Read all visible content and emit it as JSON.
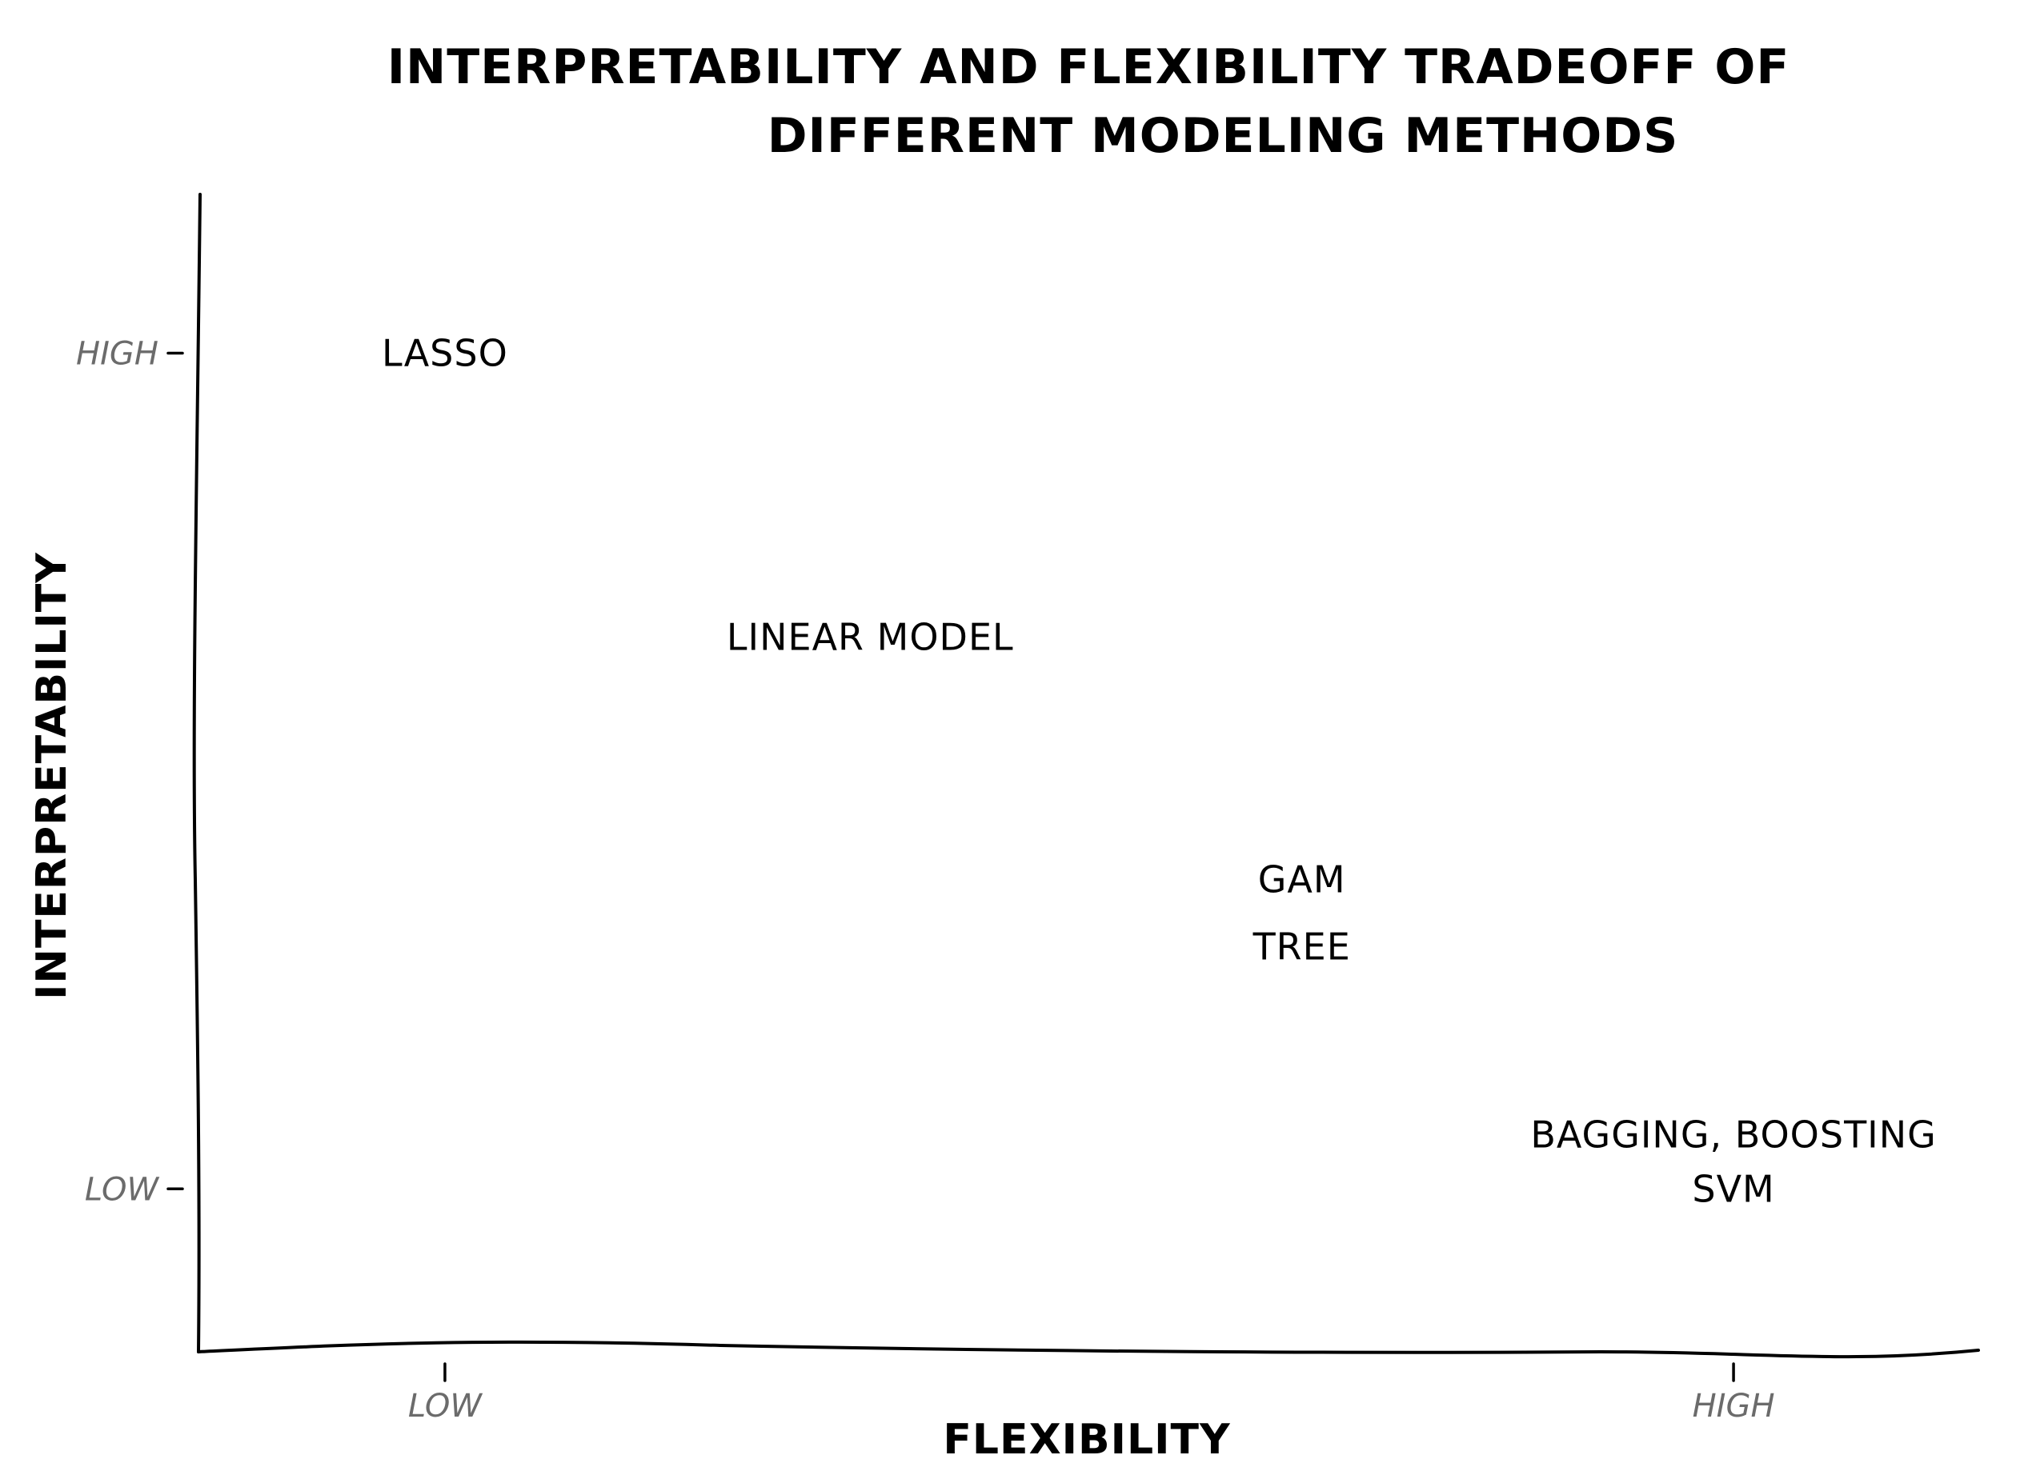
{
  "chart_data": {
    "type": "scatter",
    "title": "INTERPRETABILITY AND FLEXIBILITY TRADEOFF OF DIFFERENT MODELING METHODS",
    "title_lines": [
      "INTERPRETABILITY AND FLEXIBILITY TRADEOFF OF",
      "DIFFERENT MODELING METHODS"
    ],
    "xlabel": "FLEXIBILITY",
    "ylabel": "INTERPRETABILITY",
    "xlim": [
      -0.19,
      1.19
    ],
    "ylim": [
      -0.195,
      1.19
    ],
    "x_ticks": [
      {
        "value": 0,
        "label": "LOW"
      },
      {
        "value": 1,
        "label": "HIGH"
      }
    ],
    "y_ticks": [
      {
        "value": 0,
        "label": "LOW"
      },
      {
        "value": 1,
        "label": "HIGH"
      }
    ],
    "grid": false,
    "points": [
      {
        "label": "LASSO",
        "x": 0.0,
        "y": 1.0
      },
      {
        "label": "LINEAR MODEL",
        "x": 0.33,
        "y": 0.66
      },
      {
        "label": "GAM",
        "x": 0.665,
        "y": 0.37
      },
      {
        "label": "TREE",
        "x": 0.665,
        "y": 0.29
      },
      {
        "label": "BAGGING, BOOSTING",
        "x": 1.0,
        "y": 0.065
      },
      {
        "label": "SVM",
        "x": 1.0,
        "y": 0.0
      }
    ]
  }
}
